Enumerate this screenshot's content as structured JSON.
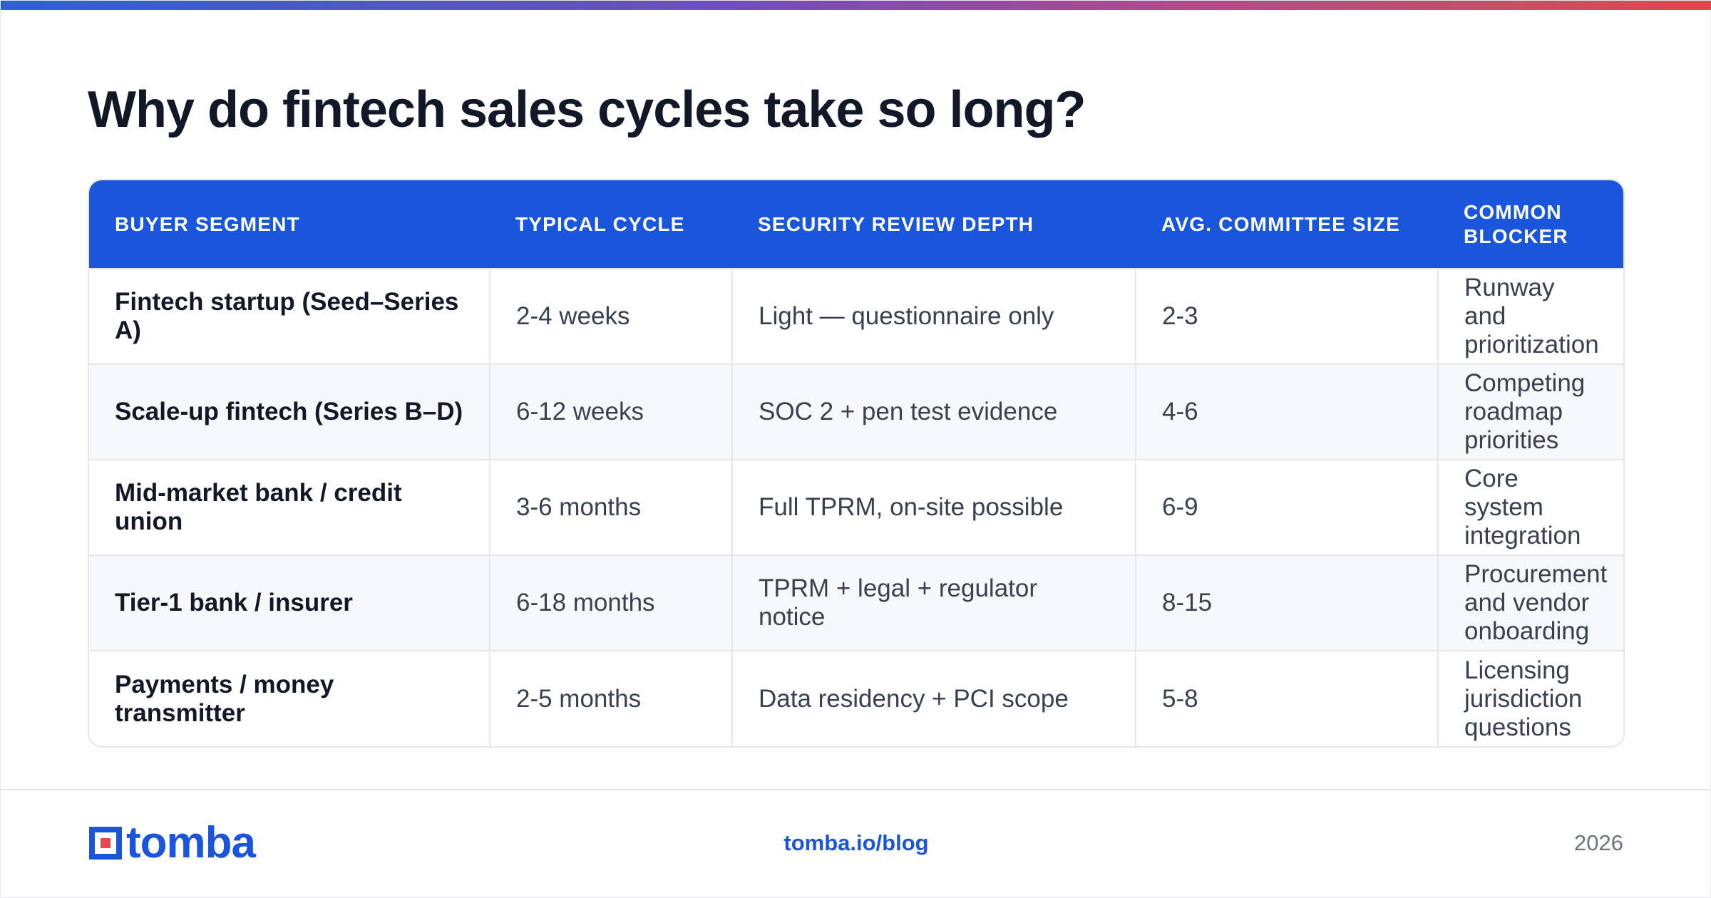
{
  "title": "Why do fintech sales cycles take so long?",
  "table": {
    "headers": [
      "BUYER SEGMENT",
      "TYPICAL CYCLE",
      "SECURITY REVIEW DEPTH",
      "AVG. COMMITTEE SIZE",
      "COMMON BLOCKER"
    ],
    "rows": [
      [
        "Fintech startup (Seed–Series A)",
        "2-4 weeks",
        "Light — questionnaire only",
        "2-3",
        "Runway and prioritization"
      ],
      [
        "Scale-up fintech (Series B–D)",
        "6-12 weeks",
        "SOC 2 + pen test evidence",
        "4-6",
        "Competing roadmap priorities"
      ],
      [
        "Mid-market bank / credit union",
        "3-6 months",
        "Full TPRM, on-site possible",
        "6-9",
        "Core system integration"
      ],
      [
        "Tier-1 bank / insurer",
        "6-18 months",
        "TPRM + legal + regulator notice",
        "8-15",
        "Procurement and vendor onboarding"
      ],
      [
        "Payments / money transmitter",
        "2-5 months",
        "Data residency + PCI scope",
        "5-8",
        "Licensing jurisdiction questions"
      ]
    ]
  },
  "footer": {
    "brand": "tomba",
    "link": "tomba.io/blog",
    "year": "2026"
  },
  "colors": {
    "accent": "#1a56db",
    "title_text": "#111827",
    "body_text": "#374151",
    "muted_text": "#6b7280",
    "gradient_start": "#2f5fe0",
    "gradient_end": "#e5484d"
  }
}
